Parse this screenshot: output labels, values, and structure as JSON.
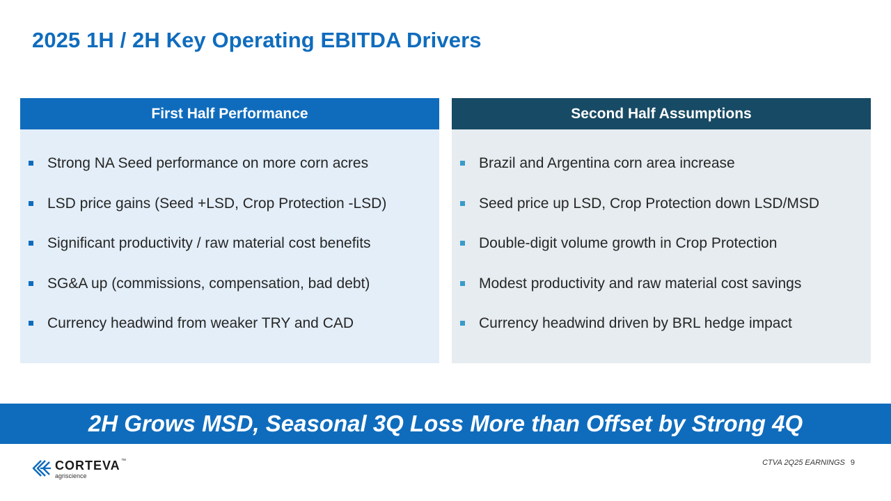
{
  "title": "2025 1H / 2H Key Operating EBITDA Drivers",
  "left_panel": {
    "header": "First Half Performance",
    "items": [
      "Strong NA Seed performance on more corn acres",
      "LSD price gains (Seed +LSD, Crop Protection -LSD)",
      "Significant productivity / raw material cost benefits",
      "SG&A up (commissions, compensation, bad debt)",
      "Currency headwind from weaker TRY and CAD"
    ]
  },
  "right_panel": {
    "header": "Second Half Assumptions",
    "items": [
      "Brazil and Argentina corn area increase",
      "Seed price up LSD, Crop Protection down LSD/MSD",
      "Double-digit volume growth in Crop Protection",
      "Modest productivity and raw material cost savings",
      "Currency headwind driven by BRL hedge impact"
    ]
  },
  "banner": "2H Grows MSD, Seasonal 3Q Loss More than Offset by Strong 4Q",
  "logo": {
    "name": "CORTEVA",
    "tm": "™",
    "sub": "agriscience"
  },
  "footer": {
    "label": "CTVA 2Q25 EARNINGS",
    "page": "9"
  },
  "colors": {
    "primary_blue": "#0f6cbd",
    "dark_teal": "#174a64",
    "left_panel_bg": "#e3eef8",
    "right_panel_bg": "#e6ecef"
  }
}
